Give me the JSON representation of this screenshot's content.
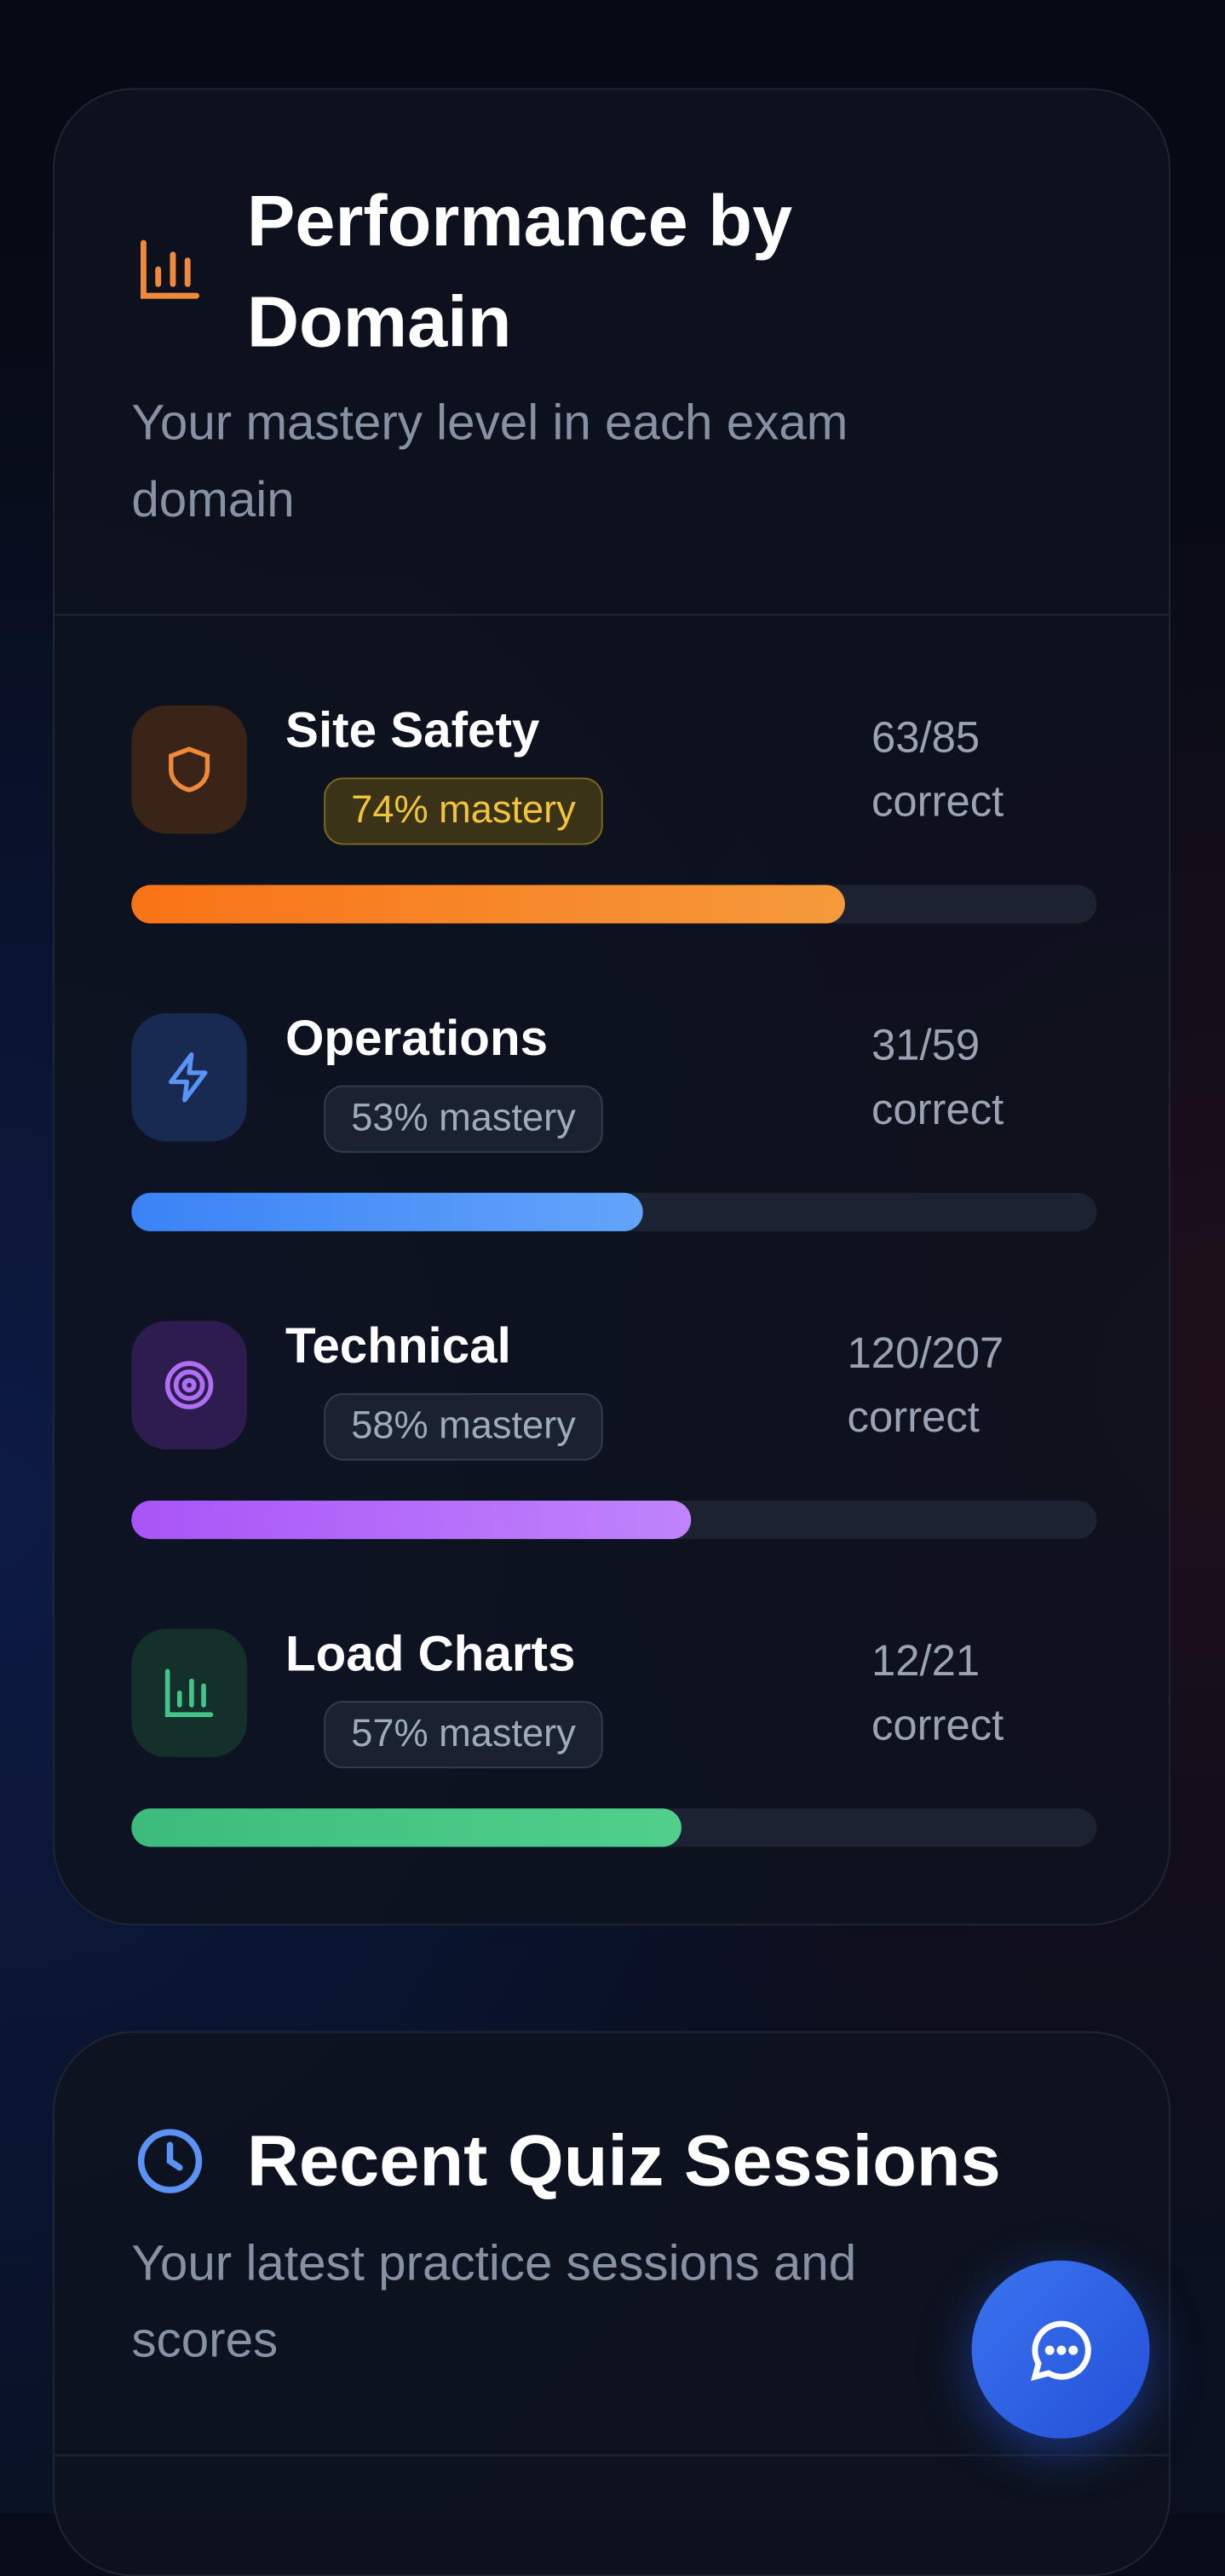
{
  "header": {
    "title": "Performance by Domain",
    "subtitle": "Your mastery level in each exam domain"
  },
  "domains": [
    {
      "name": "Site Safety",
      "mastery": 74,
      "mastery_label": "74% mastery",
      "correct": "63/85 correct"
    },
    {
      "name": "Operations",
      "mastery": 53,
      "mastery_label": "53% mastery",
      "correct": "31/59 correct"
    },
    {
      "name": "Technical",
      "mastery": 58,
      "mastery_label": "58% mastery",
      "correct": "120/207 correct"
    },
    {
      "name": "Load Charts",
      "mastery": 57,
      "mastery_label": "57% mastery",
      "correct": "12/21 correct"
    }
  ],
  "recent": {
    "title": "Recent Quiz Sessions",
    "subtitle": "Your latest practice sessions and scores"
  }
}
